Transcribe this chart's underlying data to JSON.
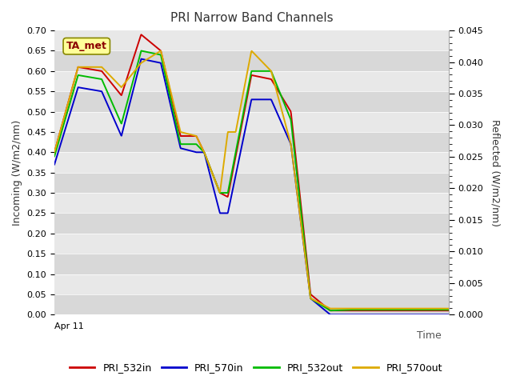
{
  "title": "PRI Narrow Band Channels",
  "xlabel": "Time",
  "ylabel_left": "Incoming (W/m2/nm)",
  "ylabel_right": "Reflected (W/m2/nm)",
  "annotation": "TA_met",
  "ylim_left": [
    0.0,
    0.7
  ],
  "ylim_right": [
    0.0,
    0.045
  ],
  "xtick_label": "Apr 11",
  "bg_light": "#e8e8e8",
  "bg_dark": "#d0d0d0",
  "legend_entries": [
    "PRI_532in",
    "PRI_570in",
    "PRI_532out",
    "PRI_570out"
  ],
  "legend_colors": [
    "#cc0000",
    "#0000cc",
    "#00bb00",
    "#ddaa00"
  ],
  "series_532in_x": [
    0,
    6,
    12,
    17,
    22,
    27,
    32,
    36,
    38,
    42,
    44,
    50,
    55,
    60,
    65,
    70,
    75,
    100
  ],
  "series_532in_y": [
    0.4,
    0.61,
    0.6,
    0.54,
    0.69,
    0.65,
    0.44,
    0.44,
    0.4,
    0.3,
    0.29,
    0.59,
    0.58,
    0.5,
    0.05,
    0.01,
    0.01,
    0.01
  ],
  "series_570in_x": [
    0,
    6,
    12,
    17,
    22,
    27,
    32,
    36,
    38,
    42,
    44,
    50,
    55,
    60,
    65,
    70,
    75,
    100
  ],
  "series_570in_y": [
    0.37,
    0.56,
    0.55,
    0.44,
    0.63,
    0.62,
    0.41,
    0.4,
    0.4,
    0.25,
    0.25,
    0.53,
    0.53,
    0.42,
    0.04,
    0.0,
    0.0,
    0.0
  ],
  "series_532out_x": [
    0,
    6,
    12,
    17,
    22,
    27,
    32,
    36,
    38,
    42,
    44,
    50,
    55,
    60,
    65,
    70,
    75,
    100
  ],
  "series_532out_y": [
    0.39,
    0.59,
    0.58,
    0.47,
    0.65,
    0.64,
    0.42,
    0.42,
    0.4,
    0.3,
    0.3,
    0.6,
    0.6,
    0.48,
    0.04,
    0.01,
    0.012,
    0.012
  ],
  "series_570out_x": [
    0,
    6,
    12,
    17,
    22,
    27,
    32,
    36,
    38,
    42,
    44,
    46,
    50,
    55,
    60,
    65,
    70,
    75,
    100
  ],
  "series_570out_y": [
    0.4,
    0.61,
    0.61,
    0.56,
    0.62,
    0.65,
    0.45,
    0.44,
    0.4,
    0.3,
    0.45,
    0.45,
    0.65,
    0.6,
    0.42,
    0.04,
    0.015,
    0.015,
    0.015
  ]
}
